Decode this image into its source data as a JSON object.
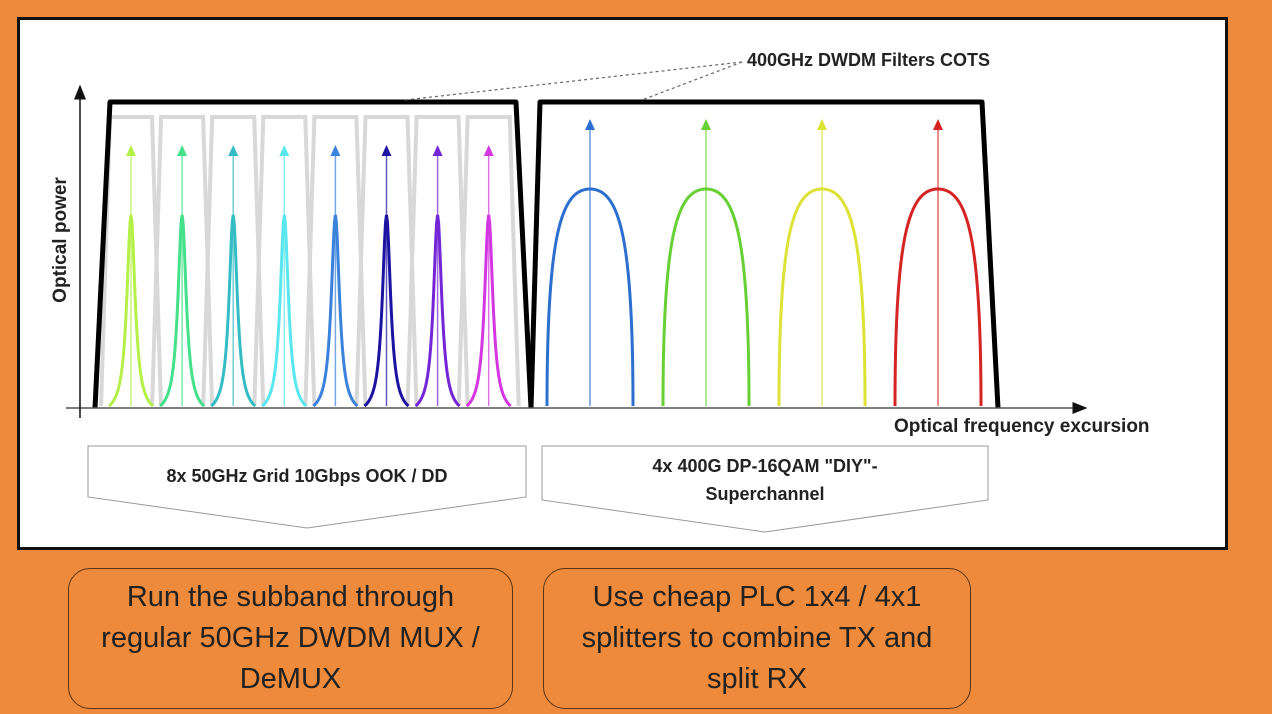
{
  "diagram": {
    "y_axis_label": "Optical power",
    "x_axis_label": "Optical frequency excursion",
    "filter_annotation": "400GHz DWDM Filters COTS",
    "left_group": {
      "label": "8x 50GHz Grid 10Gbps OOK / DD",
      "channel_colors": [
        "#b4f048",
        "#44e08a",
        "#34bcc4",
        "#5ae6ef",
        "#3a82dc",
        "#1c14a0",
        "#7426d6",
        "#d436e2"
      ],
      "filter_color": "#d8d8d8"
    },
    "right_group": {
      "label_line1": "4x 400G DP-16QAM \"DIY\"-",
      "label_line2": "Superchannel",
      "channel_colors": [
        "#2c6fce",
        "#66d034",
        "#dde236",
        "#d42424"
      ]
    }
  },
  "notes": {
    "left": "Run the subband through regular 50GHz DWDM MUX / DeMUX",
    "right": "Use cheap PLC 1x4 / 4x1 splitters to combine TX and split RX"
  }
}
